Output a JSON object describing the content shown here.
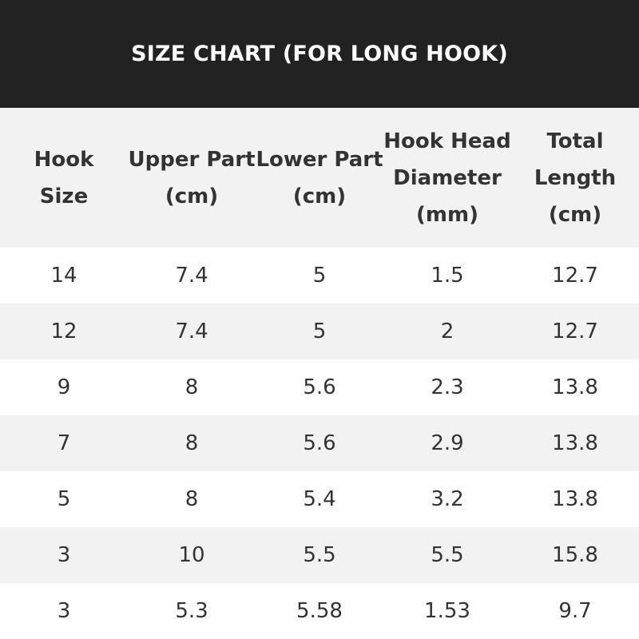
{
  "title": "SIZE CHART (FOR LONG HOOK)",
  "columns": [
    "Hook Size",
    "Upper Part (cm)",
    "Lower Part (cm)",
    "Hook Head Diameter (mm)",
    "Total Length (cm)"
  ],
  "rows": [
    [
      "14",
      "7.4",
      "5",
      "1.5",
      "12.7"
    ],
    [
      "12",
      "7.4",
      "5",
      "2",
      "12.7"
    ],
    [
      "9",
      "8",
      "5.6",
      "2.3",
      "13.8"
    ],
    [
      "7",
      "8",
      "5.6",
      "2.9",
      "13.8"
    ],
    [
      "5",
      "8",
      "5.4",
      "3.2",
      "13.8"
    ],
    [
      "3",
      "10",
      "5.5",
      "5.5",
      "15.8"
    ],
    [
      "3",
      "5.3",
      "5.58",
      "1.53",
      "9.7"
    ]
  ],
  "colors": {
    "banner": "#222222",
    "stripe": "#f2f2f2",
    "text": "#333333"
  }
}
